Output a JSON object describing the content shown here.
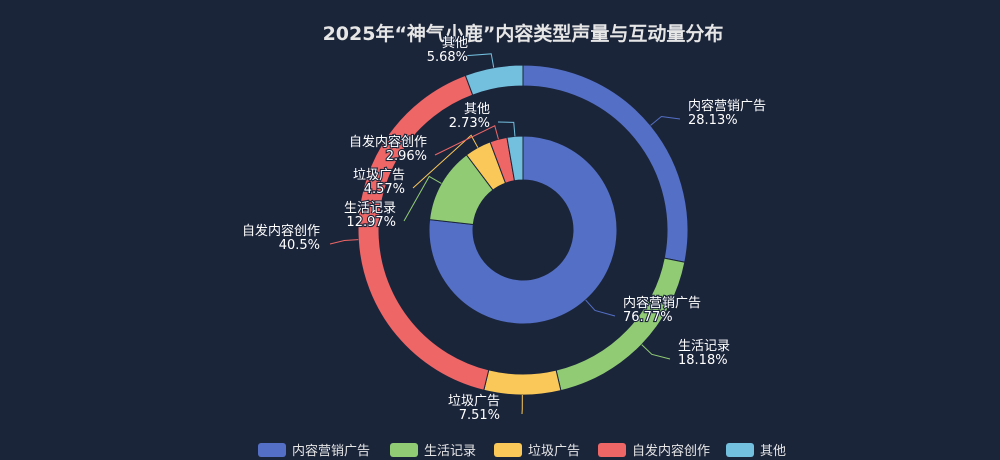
{
  "chart_data": {
    "type": "pie",
    "title": "2025年“神气小鹿”内容类型声量与互动量分布",
    "categories": [
      "内容营销广告",
      "生活记录",
      "垃圾广告",
      "自发内容创作",
      "其他"
    ],
    "colors": [
      "#5470c6",
      "#91cc75",
      "#fac858",
      "#ee6666",
      "#73c0de"
    ],
    "series": [
      {
        "ring": "outer",
        "values": [
          28.13,
          18.18,
          7.51,
          40.5,
          5.68
        ],
        "labels": [
          "28.13%",
          "18.18%",
          "7.51%",
          "40.5%",
          "5.68%"
        ]
      },
      {
        "ring": "inner",
        "values": [
          76.77,
          12.97,
          4.57,
          2.96,
          2.73
        ],
        "labels": [
          "76.77%",
          "12.97%",
          "4.57%",
          "2.96%",
          "2.73%"
        ]
      }
    ],
    "legend": {
      "position": "bottom"
    }
  }
}
